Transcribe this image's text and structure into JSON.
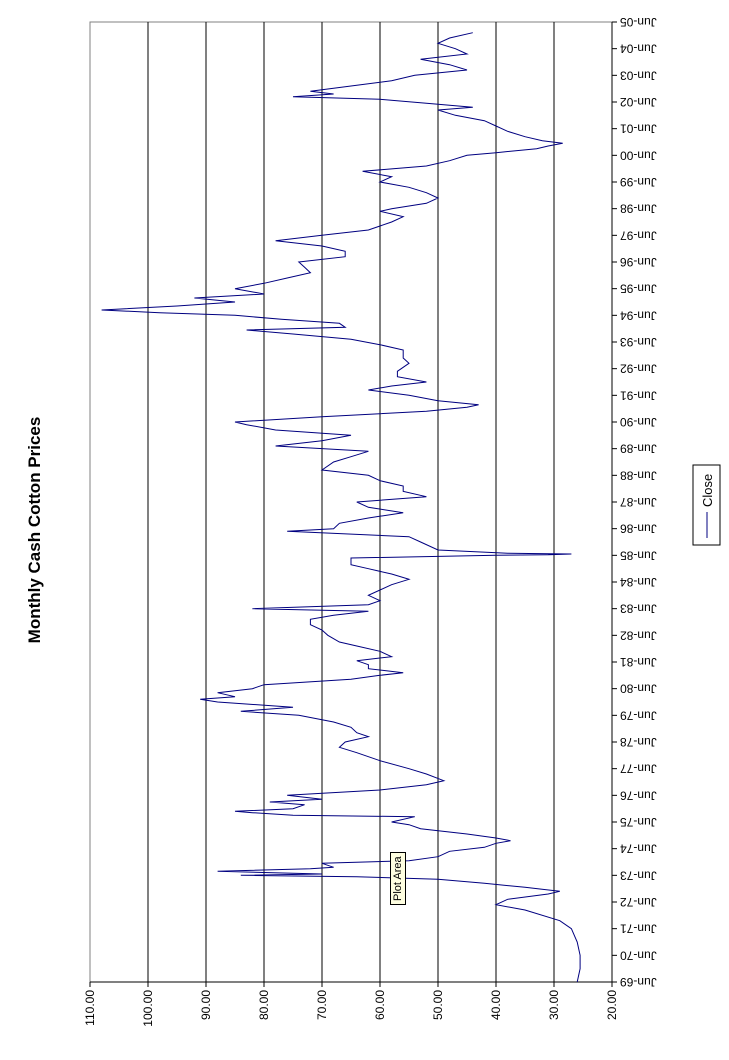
{
  "chart_data": {
    "type": "line",
    "title": "Monthly Cash Cotton Prices",
    "xlabel": "",
    "ylabel": "",
    "ylim": [
      20,
      110
    ],
    "yticks": [
      "20.00",
      "30.00",
      "40.00",
      "50.00",
      "60.00",
      "70.00",
      "80.00",
      "90.00",
      "100.00",
      "110.00"
    ],
    "ytick_values": [
      20,
      30,
      40,
      50,
      60,
      70,
      80,
      90,
      100,
      110
    ],
    "xticks": [
      "Jun-69",
      "Jun-70",
      "Jun-71",
      "Jun-72",
      "Jun-73",
      "Jun-74",
      "Jun-75",
      "Jun-76",
      "Jun-77",
      "Jun-78",
      "Jun-79",
      "Jun-80",
      "Jun-81",
      "Jun-82",
      "Jun-83",
      "Jun-84",
      "Jun-85",
      "Jun-86",
      "Jun-87",
      "Jun-88",
      "Jun-89",
      "Jun-90",
      "Jun-91",
      "Jun-92",
      "Jun-93",
      "Jun-94",
      "Jun-95",
      "Jun-96",
      "Jun-97",
      "Jun-98",
      "Jun-99",
      "Jun-00",
      "Jun-01",
      "Jun-02",
      "Jun-03",
      "Jun-04",
      "Jun-05"
    ],
    "x_unit": "years since Jun-69",
    "grid": "horizontal major gridlines",
    "legend": "right",
    "series": [
      {
        "name": "Close",
        "color": "#000080",
        "points": [
          [
            0,
            26
          ],
          [
            0.5,
            25.5
          ],
          [
            1,
            25.5
          ],
          [
            1.5,
            26
          ],
          [
            2,
            27
          ],
          [
            2.3,
            29
          ],
          [
            2.7,
            35
          ],
          [
            2.9,
            40
          ],
          [
            3.1,
            38
          ],
          [
            3.3,
            31
          ],
          [
            3.4,
            29
          ],
          [
            3.55,
            35
          ],
          [
            3.7,
            42
          ],
          [
            3.85,
            50
          ],
          [
            3.95,
            64
          ],
          [
            4.0,
            84
          ],
          [
            4.05,
            70
          ],
          [
            4.15,
            88
          ],
          [
            4.25,
            72
          ],
          [
            4.3,
            68
          ],
          [
            4.45,
            70
          ],
          [
            4.55,
            55
          ],
          [
            4.7,
            50
          ],
          [
            4.9,
            48
          ],
          [
            5.05,
            42
          ],
          [
            5.2,
            40
          ],
          [
            5.3,
            37.5
          ],
          [
            5.4,
            40
          ],
          [
            5.55,
            45
          ],
          [
            5.75,
            53
          ],
          [
            5.9,
            55
          ],
          [
            6.0,
            58
          ],
          [
            6.2,
            54
          ],
          [
            6.25,
            75
          ],
          [
            6.35,
            82
          ],
          [
            6.4,
            85
          ],
          [
            6.5,
            75
          ],
          [
            6.65,
            73
          ],
          [
            6.75,
            79
          ],
          [
            6.85,
            70
          ],
          [
            7.0,
            76
          ],
          [
            7.2,
            60
          ],
          [
            7.4,
            52
          ],
          [
            7.55,
            49
          ],
          [
            7.8,
            52
          ],
          [
            8.0,
            55
          ],
          [
            8.3,
            60
          ],
          [
            8.6,
            64
          ],
          [
            8.8,
            67
          ],
          [
            9.0,
            66
          ],
          [
            9.2,
            62
          ],
          [
            9.35,
            64
          ],
          [
            9.55,
            65
          ],
          [
            9.75,
            68
          ],
          [
            10.0,
            74
          ],
          [
            10.15,
            84
          ],
          [
            10.3,
            75
          ],
          [
            10.5,
            88
          ],
          [
            10.6,
            91
          ],
          [
            10.7,
            85
          ],
          [
            10.85,
            88
          ],
          [
            11.0,
            82
          ],
          [
            11.15,
            80
          ],
          [
            11.35,
            65
          ],
          [
            11.5,
            60
          ],
          [
            11.6,
            56
          ],
          [
            11.75,
            62
          ],
          [
            11.9,
            62
          ],
          [
            12.05,
            64
          ],
          [
            12.2,
            58
          ],
          [
            12.4,
            60
          ],
          [
            12.6,
            64
          ],
          [
            12.75,
            67
          ],
          [
            13.0,
            69
          ],
          [
            13.2,
            70
          ],
          [
            13.4,
            72
          ],
          [
            13.6,
            72
          ],
          [
            13.75,
            68
          ],
          [
            13.9,
            62
          ],
          [
            14.0,
            82
          ],
          [
            14.15,
            62
          ],
          [
            14.3,
            60
          ],
          [
            14.5,
            62
          ],
          [
            14.7,
            60
          ],
          [
            14.9,
            58
          ],
          [
            15.1,
            55
          ],
          [
            15.3,
            58
          ],
          [
            15.5,
            62
          ],
          [
            15.65,
            65
          ],
          [
            15.9,
            65
          ],
          [
            16.0,
            40
          ],
          [
            16.02,
            31
          ],
          [
            16.05,
            27
          ],
          [
            16.08,
            38
          ],
          [
            16.2,
            50
          ],
          [
            16.5,
            53
          ],
          [
            16.7,
            55
          ],
          [
            16.9,
            76
          ],
          [
            17.0,
            68
          ],
          [
            17.2,
            67
          ],
          [
            17.4,
            62
          ],
          [
            17.6,
            56
          ],
          [
            17.8,
            62
          ],
          [
            18.0,
            64
          ],
          [
            18.2,
            52
          ],
          [
            18.4,
            56
          ],
          [
            18.6,
            56
          ],
          [
            18.8,
            60
          ],
          [
            19.0,
            62
          ],
          [
            19.2,
            70
          ],
          [
            19.5,
            68
          ],
          [
            19.7,
            65
          ],
          [
            19.9,
            62
          ],
          [
            20.1,
            78
          ],
          [
            20.3,
            70
          ],
          [
            20.5,
            65
          ],
          [
            20.7,
            78
          ],
          [
            20.9,
            83
          ],
          [
            21.0,
            85
          ],
          [
            21.2,
            70
          ],
          [
            21.4,
            52
          ],
          [
            21.55,
            45
          ],
          [
            21.65,
            43
          ],
          [
            21.8,
            50
          ],
          [
            22.0,
            55
          ],
          [
            22.2,
            62
          ],
          [
            22.35,
            58
          ],
          [
            22.5,
            52
          ],
          [
            22.7,
            57
          ],
          [
            22.9,
            57
          ],
          [
            23.2,
            55
          ],
          [
            23.4,
            56
          ],
          [
            23.7,
            56
          ],
          [
            23.9,
            60
          ],
          [
            24.1,
            65
          ],
          [
            24.3,
            75
          ],
          [
            24.45,
            83
          ],
          [
            24.55,
            66
          ],
          [
            24.7,
            67
          ],
          [
            24.85,
            77
          ],
          [
            25.0,
            85
          ],
          [
            25.1,
            98
          ],
          [
            25.2,
            108
          ],
          [
            25.35,
            95
          ],
          [
            25.5,
            85
          ],
          [
            25.65,
            92
          ],
          [
            25.8,
            80
          ],
          [
            26.0,
            85
          ],
          [
            26.2,
            80
          ],
          [
            26.4,
            76
          ],
          [
            26.6,
            72
          ],
          [
            26.8,
            73
          ],
          [
            27.0,
            74
          ],
          [
            27.2,
            66
          ],
          [
            27.4,
            66
          ],
          [
            27.6,
            70
          ],
          [
            27.8,
            78
          ],
          [
            28.0,
            70
          ],
          [
            28.2,
            62
          ],
          [
            28.5,
            58
          ],
          [
            28.7,
            56
          ],
          [
            28.9,
            60
          ],
          [
            29.0,
            58
          ],
          [
            29.2,
            52
          ],
          [
            29.4,
            50
          ],
          [
            29.6,
            52
          ],
          [
            29.8,
            55
          ],
          [
            30.0,
            60
          ],
          [
            30.2,
            58
          ],
          [
            30.4,
            63
          ],
          [
            30.6,
            52
          ],
          [
            30.8,
            48
          ],
          [
            31.0,
            45
          ],
          [
            31.1,
            40
          ],
          [
            31.25,
            33
          ],
          [
            31.35,
            31
          ],
          [
            31.45,
            28.5
          ],
          [
            31.55,
            32
          ],
          [
            31.7,
            35
          ],
          [
            31.9,
            38
          ],
          [
            32.1,
            40
          ],
          [
            32.3,
            42
          ],
          [
            32.5,
            47
          ],
          [
            32.7,
            50
          ],
          [
            32.8,
            44
          ],
          [
            32.95,
            52
          ],
          [
            33.1,
            60
          ],
          [
            33.2,
            75
          ],
          [
            33.3,
            68
          ],
          [
            33.4,
            72
          ],
          [
            33.6,
            65
          ],
          [
            33.8,
            58
          ],
          [
            34.0,
            54
          ],
          [
            34.2,
            45
          ],
          [
            34.4,
            48
          ],
          [
            34.6,
            53
          ],
          [
            34.8,
            45
          ],
          [
            35.0,
            47
          ],
          [
            35.2,
            50
          ],
          [
            35.4,
            48
          ],
          [
            35.6,
            44
          ]
        ]
      }
    ],
    "tooltip": "Plot Area"
  }
}
